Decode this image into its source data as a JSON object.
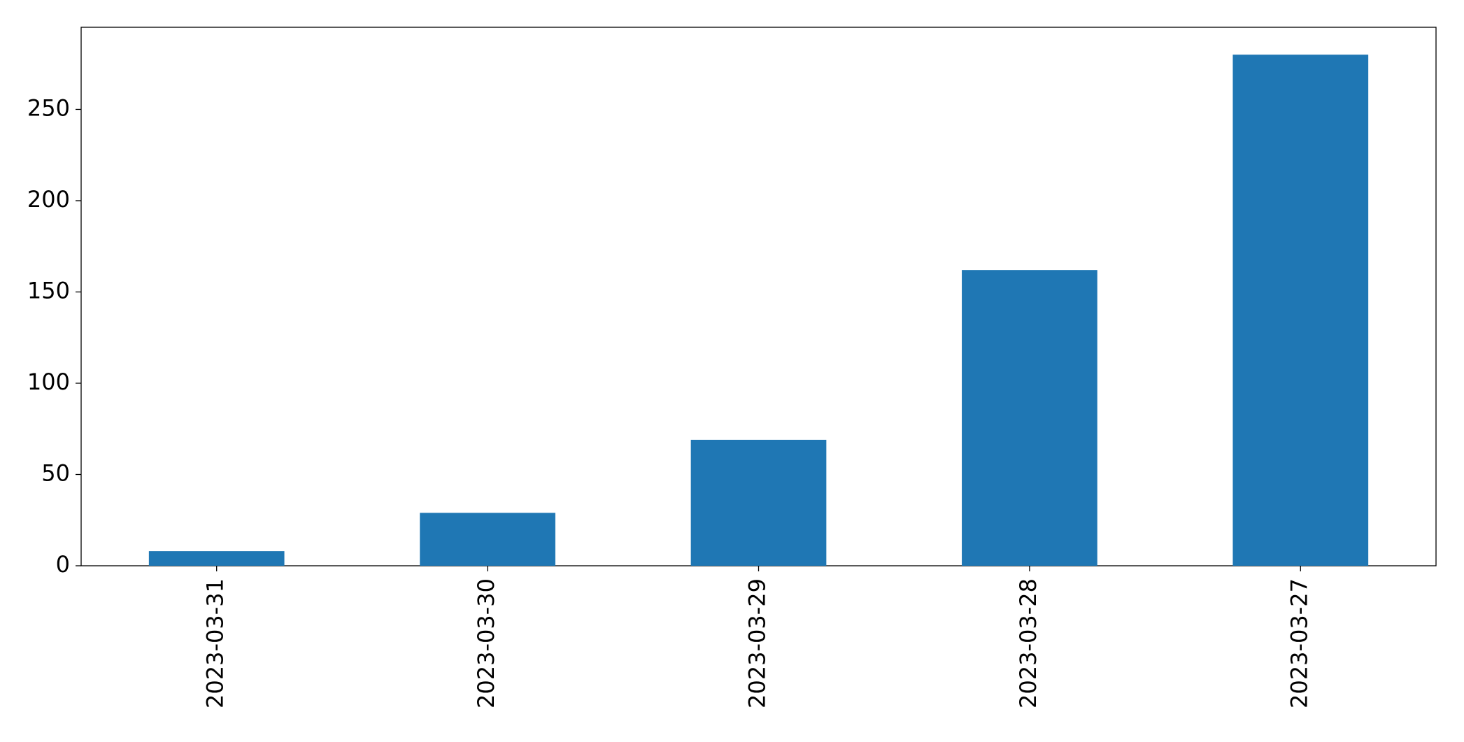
{
  "chart_data": {
    "type": "bar",
    "categories": [
      "2023-03-31",
      "2023-03-30",
      "2023-03-29",
      "2023-03-28",
      "2023-03-27"
    ],
    "values": [
      8,
      29,
      69,
      162,
      280
    ],
    "color": "#1f77b4",
    "ylim": [
      0,
      295
    ],
    "yticks": [
      0,
      50,
      100,
      150,
      200,
      250
    ],
    "grid": false
  }
}
